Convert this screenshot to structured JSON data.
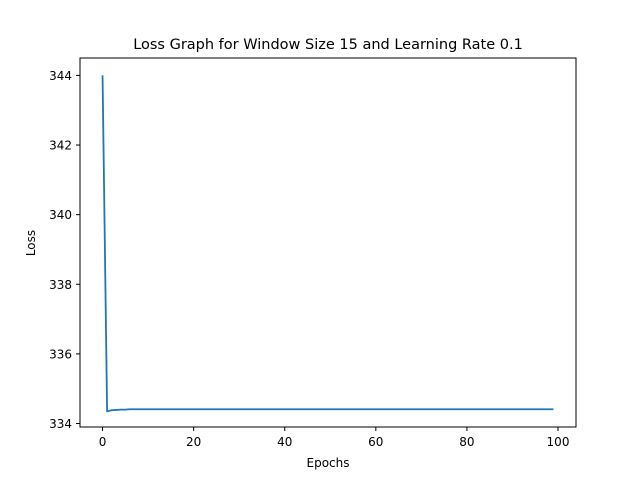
{
  "chart_data": {
    "type": "line",
    "title": "Loss Graph for Window Size 15 and Learning Rate 0.1",
    "xlabel": "Epochs",
    "ylabel": "Loss",
    "xlim": [
      -4.95,
      103.95
    ],
    "ylim": [
      333.9,
      344.5
    ],
    "xticks": [
      0,
      20,
      40,
      60,
      80,
      100
    ],
    "yticks": [
      334,
      336,
      338,
      340,
      342,
      344
    ],
    "grid": false,
    "line_color": "#1f77b4",
    "series": [
      {
        "x": [
          0,
          1,
          2,
          3,
          4,
          5,
          6,
          7,
          8,
          10,
          15,
          20,
          30,
          40,
          50,
          60,
          70,
          80,
          90,
          99
        ],
        "values": [
          344.0,
          334.35,
          334.38,
          334.39,
          334.4,
          334.4,
          334.41,
          334.41,
          334.41,
          334.41,
          334.41,
          334.41,
          334.41,
          334.41,
          334.41,
          334.41,
          334.41,
          334.41,
          334.41,
          334.41
        ]
      }
    ]
  }
}
